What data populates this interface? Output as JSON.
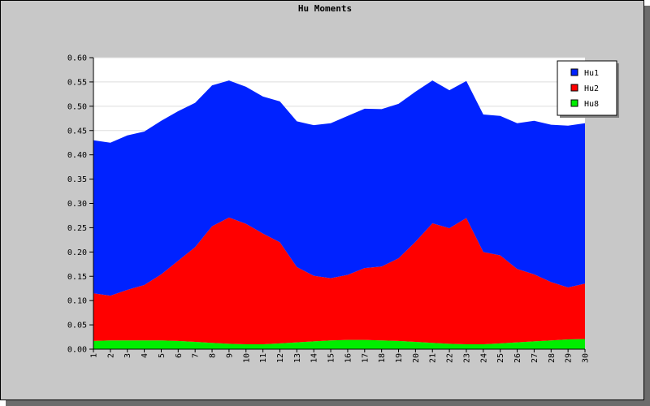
{
  "chart_data": {
    "type": "area",
    "stacked": true,
    "title": "Hu Moments",
    "x": [
      "1",
      "2",
      "3",
      "4",
      "5",
      "6",
      "7",
      "8",
      "9",
      "10",
      "11",
      "12",
      "13",
      "14",
      "15",
      "16",
      "17",
      "18",
      "19",
      "20",
      "21",
      "22",
      "23",
      "24",
      "25",
      "26",
      "27",
      "28",
      "29",
      "30"
    ],
    "ylim": [
      0,
      0.6
    ],
    "yticks": [
      "0.00",
      "0.05",
      "0.10",
      "0.15",
      "0.20",
      "0.25",
      "0.30",
      "0.35",
      "0.40",
      "0.45",
      "0.50",
      "0.55",
      "0.60"
    ],
    "grid": true,
    "legend_position": "top-right",
    "series": [
      {
        "name": "Hu8",
        "color": "#00ee00",
        "values": [
          0.017,
          0.018,
          0.018,
          0.018,
          0.018,
          0.017,
          0.015,
          0.013,
          0.011,
          0.01,
          0.01,
          0.012,
          0.014,
          0.016,
          0.018,
          0.019,
          0.019,
          0.018,
          0.017,
          0.015,
          0.013,
          0.011,
          0.01,
          0.01,
          0.012,
          0.014,
          0.016,
          0.018,
          0.02,
          0.021
        ]
      },
      {
        "name": "Hu2",
        "color": "#ff0000",
        "values": [
          0.098,
          0.092,
          0.104,
          0.114,
          0.136,
          0.165,
          0.195,
          0.24,
          0.26,
          0.248,
          0.228,
          0.208,
          0.155,
          0.135,
          0.128,
          0.134,
          0.148,
          0.152,
          0.17,
          0.206,
          0.246,
          0.238,
          0.26,
          0.19,
          0.181,
          0.151,
          0.138,
          0.12,
          0.107,
          0.114
        ]
      },
      {
        "name": "Hu1",
        "color": "#0022ff",
        "values": [
          0.315,
          0.315,
          0.318,
          0.316,
          0.316,
          0.308,
          0.297,
          0.29,
          0.282,
          0.282,
          0.282,
          0.29,
          0.3,
          0.31,
          0.319,
          0.327,
          0.328,
          0.324,
          0.318,
          0.309,
          0.294,
          0.284,
          0.282,
          0.283,
          0.287,
          0.3,
          0.316,
          0.324,
          0.333,
          0.33
        ]
      }
    ]
  }
}
